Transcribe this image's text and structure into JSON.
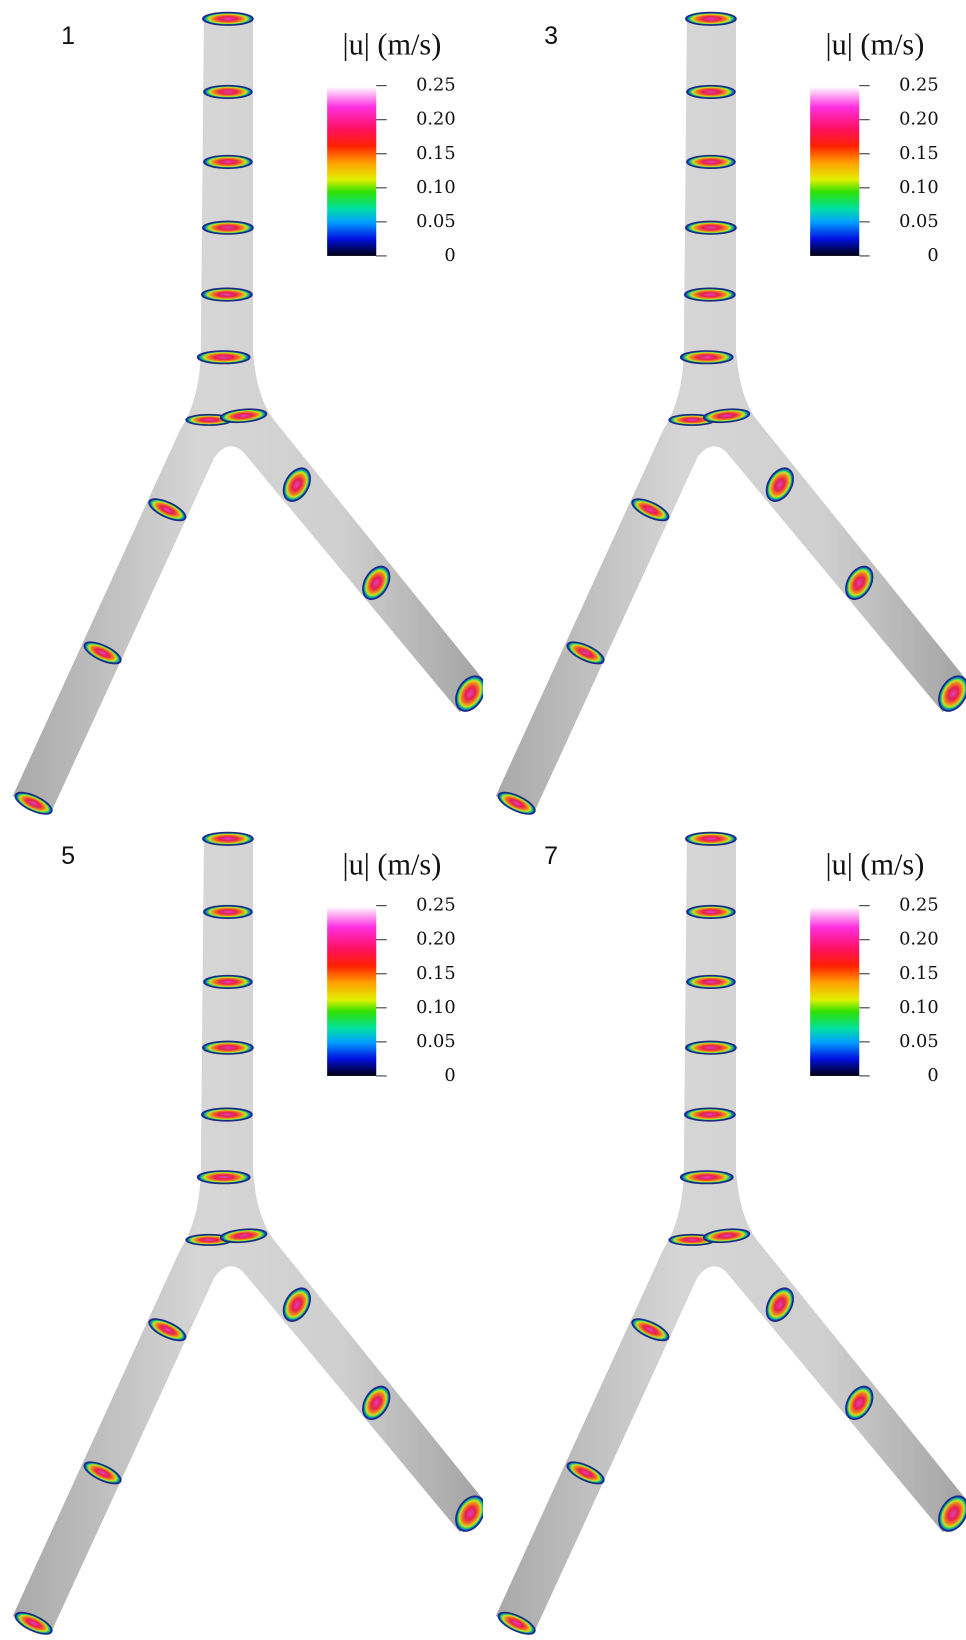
{
  "panels": [
    {
      "label": "1",
      "colorbar": {
        "title": "|u| (m/s)",
        "ticks": [
          "0.25",
          "0.20",
          "0.15",
          "0.10",
          "0.05",
          "0"
        ]
      }
    },
    {
      "label": "3",
      "colorbar": {
        "title": "|u| (m/s)",
        "ticks": [
          "0.25",
          "0.20",
          "0.15",
          "0.10",
          "0.05",
          "0"
        ]
      }
    },
    {
      "label": "5",
      "colorbar": {
        "title": "|u| (m/s)",
        "ticks": [
          "0.25",
          "0.20",
          "0.15",
          "0.10",
          "0.05",
          "0"
        ]
      }
    },
    {
      "label": "7",
      "colorbar": {
        "title": "|u| (m/s)",
        "ticks": [
          "0.25",
          "0.20",
          "0.15",
          "0.10",
          "0.05",
          "0"
        ]
      }
    }
  ]
}
